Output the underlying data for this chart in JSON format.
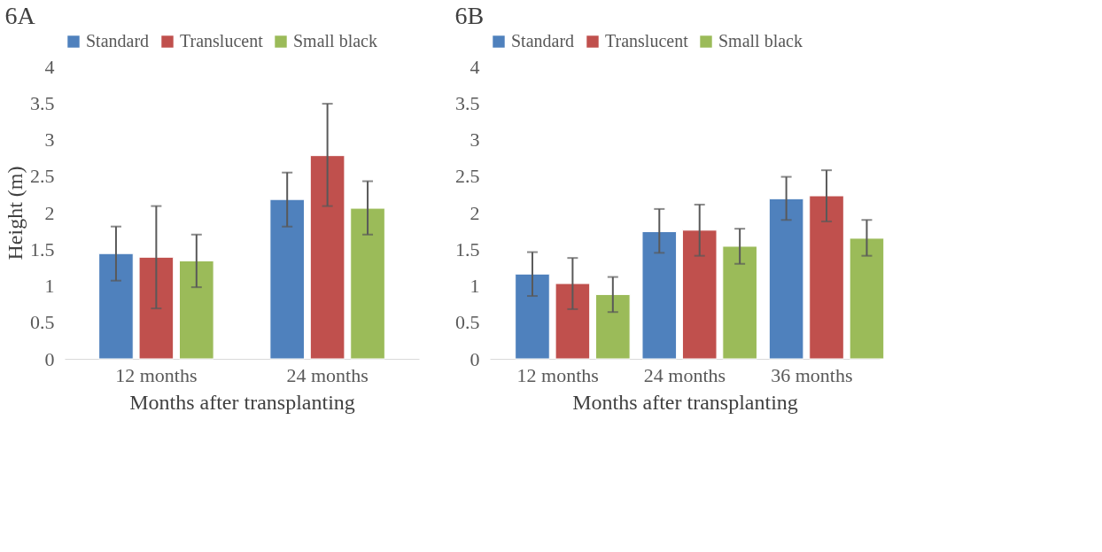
{
  "chart_data": [
    {
      "type": "bar",
      "title": "6A",
      "xlabel": "Months after transplanting",
      "ylabel": "Height (m)",
      "categories": [
        "12 months",
        "24 months"
      ],
      "series": [
        {
          "name": "Standard",
          "color": "#4f81bd",
          "values": [
            1.44,
            2.18
          ],
          "errors": [
            [
              1.07,
              1.81
            ],
            [
              1.81,
              2.55
            ]
          ]
        },
        {
          "name": "Translucent",
          "color": "#c0504d",
          "values": [
            1.39,
            2.78
          ],
          "errors": [
            [
              0.69,
              2.09
            ],
            [
              2.09,
              3.49
            ]
          ]
        },
        {
          "name": "Small black",
          "color": "#9bbb59",
          "values": [
            1.34,
            2.06
          ],
          "errors": [
            [
              0.98,
              1.7
            ],
            [
              1.7,
              2.43
            ]
          ]
        }
      ],
      "ylim": [
        0,
        4
      ],
      "yticks": [
        0,
        0.5,
        1,
        1.5,
        2,
        2.5,
        3,
        3.5,
        4
      ],
      "grid": false,
      "legend": "top"
    },
    {
      "type": "bar",
      "title": "6B",
      "xlabel": "Months after transplanting",
      "categories": [
        "12 months",
        "24 months",
        "36 months"
      ],
      "series": [
        {
          "name": "Standard",
          "color": "#4f81bd",
          "values": [
            1.16,
            1.74,
            2.19
          ],
          "errors": [
            [
              0.86,
              1.46
            ],
            [
              1.45,
              2.05
            ],
            [
              1.9,
              2.49
            ]
          ]
        },
        {
          "name": "Translucent",
          "color": "#c0504d",
          "values": [
            1.03,
            1.76,
            2.23
          ],
          "errors": [
            [
              0.68,
              1.38
            ],
            [
              1.41,
              2.11
            ],
            [
              1.88,
              2.58
            ]
          ]
        },
        {
          "name": "Small black",
          "color": "#9bbb59",
          "values": [
            0.88,
            1.54,
            1.65
          ],
          "errors": [
            [
              0.64,
              1.12
            ],
            [
              1.3,
              1.78
            ],
            [
              1.41,
              1.9
            ]
          ]
        }
      ],
      "ylim": [
        0,
        4
      ],
      "yticks": [
        0,
        0.5,
        1,
        1.5,
        2,
        2.5,
        3,
        3.5,
        4
      ],
      "grid": false,
      "legend": "top"
    }
  ]
}
